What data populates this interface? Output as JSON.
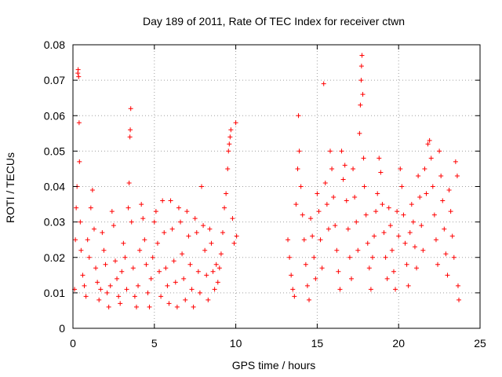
{
  "chart_data": {
    "type": "scatter",
    "title": "Day 189 of 2011, Rate Of TEC Index for receiver ctwn",
    "xlabel": "GPS time / hours",
    "ylabel": "ROTI / TECUs",
    "xlim": [
      0,
      25
    ],
    "ylim": [
      0,
      0.08
    ],
    "x_ticks": [
      0,
      5,
      10,
      15,
      20,
      25
    ],
    "x_tick_labels": [
      "0",
      "5",
      "10",
      "15",
      "20",
      "25"
    ],
    "y_ticks": [
      0,
      0.01,
      0.02,
      0.03,
      0.04,
      0.05,
      0.06,
      0.07,
      0.08
    ],
    "y_tick_labels": [
      "0",
      "0.01",
      "0.02",
      "0.03",
      "0.04",
      "0.05",
      "0.06",
      "0.07",
      "0.08"
    ],
    "grid": true,
    "marker": "plus",
    "color": "#ff0000",
    "series": [
      {
        "points": [
          [
            0.1,
            0.011
          ],
          [
            0.15,
            0.025
          ],
          [
            0.2,
            0.034
          ],
          [
            0.25,
            0.04
          ],
          [
            0.3,
            0.072
          ],
          [
            0.32,
            0.073
          ],
          [
            0.35,
            0.071
          ],
          [
            0.38,
            0.058
          ],
          [
            0.4,
            0.047
          ],
          [
            0.45,
            0.03
          ],
          [
            0.5,
            0.022
          ],
          [
            0.6,
            0.015
          ],
          [
            0.7,
            0.012
          ],
          [
            0.8,
            0.009
          ],
          [
            0.9,
            0.025
          ],
          [
            1.0,
            0.02
          ],
          [
            1.1,
            0.034
          ],
          [
            1.2,
            0.039
          ],
          [
            1.3,
            0.028
          ],
          [
            1.4,
            0.017
          ],
          [
            1.5,
            0.013
          ],
          [
            1.6,
            0.008
          ],
          [
            1.7,
            0.011
          ],
          [
            1.8,
            0.027
          ],
          [
            1.9,
            0.022
          ],
          [
            2.0,
            0.018
          ],
          [
            2.1,
            0.01
          ],
          [
            2.2,
            0.006
          ],
          [
            2.3,
            0.012
          ],
          [
            2.4,
            0.033
          ],
          [
            2.5,
            0.029
          ],
          [
            2.6,
            0.019
          ],
          [
            2.7,
            0.014
          ],
          [
            2.8,
            0.009
          ],
          [
            2.9,
            0.007
          ],
          [
            3.0,
            0.016
          ],
          [
            3.1,
            0.024
          ],
          [
            3.2,
            0.02
          ],
          [
            3.3,
            0.011
          ],
          [
            3.4,
            0.034
          ],
          [
            3.45,
            0.041
          ],
          [
            3.5,
            0.054
          ],
          [
            3.52,
            0.056
          ],
          [
            3.55,
            0.062
          ],
          [
            3.6,
            0.03
          ],
          [
            3.7,
            0.017
          ],
          [
            3.8,
            0.009
          ],
          [
            3.9,
            0.006
          ],
          [
            4.0,
            0.012
          ],
          [
            4.1,
            0.022
          ],
          [
            4.2,
            0.035
          ],
          [
            4.3,
            0.031
          ],
          [
            4.4,
            0.025
          ],
          [
            4.5,
            0.018
          ],
          [
            4.6,
            0.01
          ],
          [
            4.7,
            0.006
          ],
          [
            4.8,
            0.014
          ],
          [
            4.9,
            0.02
          ],
          [
            5.0,
            0.03
          ],
          [
            5.1,
            0.033
          ],
          [
            5.2,
            0.024
          ],
          [
            5.3,
            0.016
          ],
          [
            5.4,
            0.009
          ],
          [
            5.5,
            0.036
          ],
          [
            5.6,
            0.027
          ],
          [
            5.7,
            0.017
          ],
          [
            5.8,
            0.012
          ],
          [
            5.9,
            0.007
          ],
          [
            6.0,
            0.036
          ],
          [
            6.1,
            0.028
          ],
          [
            6.2,
            0.019
          ],
          [
            6.3,
            0.013
          ],
          [
            6.4,
            0.006
          ],
          [
            6.5,
            0.034
          ],
          [
            6.6,
            0.03
          ],
          [
            6.7,
            0.021
          ],
          [
            6.8,
            0.014
          ],
          [
            6.9,
            0.008
          ],
          [
            7.0,
            0.033
          ],
          [
            7.1,
            0.026
          ],
          [
            7.2,
            0.018
          ],
          [
            7.3,
            0.011
          ],
          [
            7.4,
            0.006
          ],
          [
            7.5,
            0.031
          ],
          [
            7.6,
            0.027
          ],
          [
            7.7,
            0.016
          ],
          [
            7.8,
            0.01
          ],
          [
            7.9,
            0.04
          ],
          [
            8.0,
            0.029
          ],
          [
            8.1,
            0.022
          ],
          [
            8.2,
            0.015
          ],
          [
            8.3,
            0.008
          ],
          [
            8.4,
            0.028
          ],
          [
            8.5,
            0.024
          ],
          [
            8.6,
            0.016
          ],
          [
            8.7,
            0.011
          ],
          [
            8.8,
            0.018
          ],
          [
            8.9,
            0.013
          ],
          [
            9.0,
            0.017
          ],
          [
            9.1,
            0.021
          ],
          [
            9.2,
            0.027
          ],
          [
            9.3,
            0.034
          ],
          [
            9.4,
            0.038
          ],
          [
            9.5,
            0.045
          ],
          [
            9.55,
            0.05
          ],
          [
            9.6,
            0.052
          ],
          [
            9.65,
            0.054
          ],
          [
            9.7,
            0.056
          ],
          [
            9.8,
            0.031
          ],
          [
            9.9,
            0.024
          ],
          [
            10.0,
            0.058
          ],
          [
            10.05,
            0.026
          ],
          [
            13.2,
            0.025
          ],
          [
            13.3,
            0.02
          ],
          [
            13.4,
            0.015
          ],
          [
            13.5,
            0.011
          ],
          [
            13.6,
            0.009
          ],
          [
            13.7,
            0.035
          ],
          [
            13.8,
            0.045
          ],
          [
            13.85,
            0.06
          ],
          [
            13.9,
            0.05
          ],
          [
            14.0,
            0.04
          ],
          [
            14.1,
            0.032
          ],
          [
            14.2,
            0.025
          ],
          [
            14.3,
            0.018
          ],
          [
            14.4,
            0.012
          ],
          [
            14.5,
            0.008
          ],
          [
            14.6,
            0.031
          ],
          [
            14.7,
            0.026
          ],
          [
            14.8,
            0.02
          ],
          [
            14.9,
            0.014
          ],
          [
            15.0,
            0.038
          ],
          [
            15.1,
            0.033
          ],
          [
            15.2,
            0.025
          ],
          [
            15.3,
            0.017
          ],
          [
            15.4,
            0.069
          ],
          [
            15.5,
            0.041
          ],
          [
            15.6,
            0.035
          ],
          [
            15.7,
            0.028
          ],
          [
            15.8,
            0.05
          ],
          [
            15.9,
            0.045
          ],
          [
            16.0,
            0.037
          ],
          [
            16.1,
            0.029
          ],
          [
            16.2,
            0.022
          ],
          [
            16.3,
            0.016
          ],
          [
            16.4,
            0.011
          ],
          [
            16.5,
            0.05
          ],
          [
            16.6,
            0.042
          ],
          [
            16.7,
            0.046
          ],
          [
            16.8,
            0.036
          ],
          [
            16.9,
            0.028
          ],
          [
            17.0,
            0.02
          ],
          [
            17.1,
            0.014
          ],
          [
            17.2,
            0.045
          ],
          [
            17.3,
            0.037
          ],
          [
            17.4,
            0.03
          ],
          [
            17.5,
            0.022
          ],
          [
            17.6,
            0.055
          ],
          [
            17.65,
            0.063
          ],
          [
            17.7,
            0.07
          ],
          [
            17.72,
            0.074
          ],
          [
            17.75,
            0.077
          ],
          [
            17.8,
            0.066
          ],
          [
            17.85,
            0.048
          ],
          [
            17.9,
            0.04
          ],
          [
            18.0,
            0.032
          ],
          [
            18.1,
            0.024
          ],
          [
            18.2,
            0.017
          ],
          [
            18.3,
            0.011
          ],
          [
            18.4,
            0.02
          ],
          [
            18.5,
            0.026
          ],
          [
            18.6,
            0.033
          ],
          [
            18.7,
            0.038
          ],
          [
            18.8,
            0.048
          ],
          [
            18.9,
            0.044
          ],
          [
            19.0,
            0.035
          ],
          [
            19.1,
            0.027
          ],
          [
            19.2,
            0.02
          ],
          [
            19.3,
            0.014
          ],
          [
            19.4,
            0.034
          ],
          [
            19.5,
            0.029
          ],
          [
            19.6,
            0.022
          ],
          [
            19.7,
            0.016
          ],
          [
            19.8,
            0.011
          ],
          [
            19.9,
            0.033
          ],
          [
            20.0,
            0.026
          ],
          [
            20.1,
            0.045
          ],
          [
            20.2,
            0.04
          ],
          [
            20.3,
            0.032
          ],
          [
            20.4,
            0.024
          ],
          [
            20.5,
            0.018
          ],
          [
            20.6,
            0.012
          ],
          [
            20.7,
            0.027
          ],
          [
            20.8,
            0.035
          ],
          [
            20.9,
            0.03
          ],
          [
            21.0,
            0.023
          ],
          [
            21.1,
            0.017
          ],
          [
            21.2,
            0.043
          ],
          [
            21.3,
            0.037
          ],
          [
            21.4,
            0.029
          ],
          [
            21.5,
            0.022
          ],
          [
            21.6,
            0.045
          ],
          [
            21.7,
            0.038
          ],
          [
            21.8,
            0.052
          ],
          [
            21.9,
            0.053
          ],
          [
            22.0,
            0.048
          ],
          [
            22.1,
            0.04
          ],
          [
            22.2,
            0.032
          ],
          [
            22.3,
            0.025
          ],
          [
            22.4,
            0.018
          ],
          [
            22.5,
            0.05
          ],
          [
            22.6,
            0.043
          ],
          [
            22.7,
            0.036
          ],
          [
            22.8,
            0.028
          ],
          [
            22.9,
            0.021
          ],
          [
            23.0,
            0.015
          ],
          [
            23.1,
            0.039
          ],
          [
            23.2,
            0.033
          ],
          [
            23.3,
            0.026
          ],
          [
            23.4,
            0.02
          ],
          [
            23.5,
            0.047
          ],
          [
            23.6,
            0.043
          ],
          [
            23.65,
            0.012
          ],
          [
            23.7,
            0.008
          ]
        ]
      }
    ]
  }
}
